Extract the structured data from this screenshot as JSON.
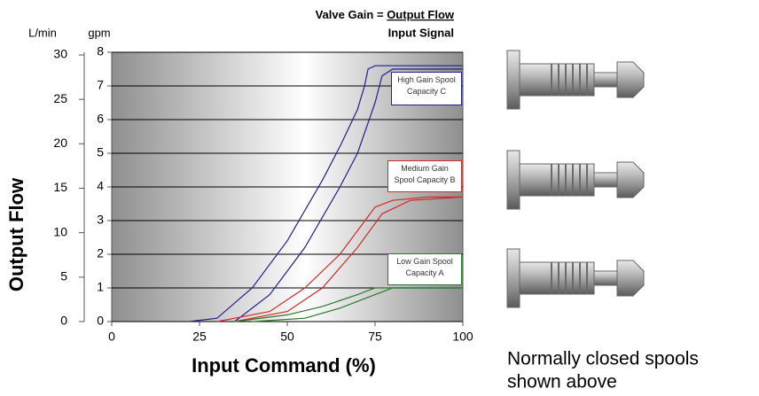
{
  "chart_data": {
    "type": "line",
    "title": "Valve Gain =",
    "title_numerator": "Output Flow",
    "title_denominator": "Input Signal",
    "y_label": "Output Flow",
    "y_unit": "gpm",
    "y2_unit": "L/min",
    "x_label": "Input Command (%)",
    "xlim": [
      0,
      100
    ],
    "xticks": [
      0,
      25,
      50,
      75,
      100
    ],
    "ylim": [
      0,
      8
    ],
    "yticks": [
      0,
      1,
      2,
      3,
      4,
      5,
      6,
      7,
      8
    ],
    "y2lim": [
      0,
      30.3
    ],
    "y2ticks": [
      0,
      5,
      10,
      15,
      20,
      25,
      30
    ],
    "grid": true,
    "series": [
      {
        "name": "High Gain Spool Capacity C",
        "color": "#1f1f8f",
        "curves": [
          {
            "x": [
              22,
              30,
              40,
              50,
              55,
              60,
              65,
              70,
              72,
              73,
              75,
              100
            ],
            "values": [
              0,
              0.1,
              1,
              2.4,
              3.3,
              4.2,
              5.2,
              6.3,
              7,
              7.5,
              7.6,
              7.6
            ]
          },
          {
            "x": [
              35,
              45,
              55,
              65,
              70,
              75,
              77,
              80,
              100
            ],
            "values": [
              0,
              0.8,
              2.2,
              4,
              5,
              6.5,
              7.3,
              7.5,
              7.5
            ]
          }
        ]
      },
      {
        "name": "Medium Gain Spool Capacity B",
        "color": "#d42a2a",
        "curves": [
          {
            "x": [
              30,
              45,
              55,
              65,
              70,
              75,
              80,
              90,
              100
            ],
            "values": [
              0,
              0.3,
              1,
              2,
              2.7,
              3.4,
              3.6,
              3.7,
              3.7
            ]
          },
          {
            "x": [
              35,
              50,
              60,
              70,
              77,
              85,
              100
            ],
            "values": [
              0,
              0.3,
              1,
              2.2,
              3.2,
              3.6,
              3.7
            ]
          }
        ]
      },
      {
        "name": "Low Gain Spool Capacity A",
        "color": "#2a7a2a",
        "curves": [
          {
            "x": [
              35,
              50,
              60,
              70,
              75,
              100
            ],
            "values": [
              0,
              0.2,
              0.45,
              0.8,
              1,
              1
            ]
          },
          {
            "x": [
              40,
              55,
              65,
              75,
              80,
              100
            ],
            "values": [
              0,
              0.1,
              0.4,
              0.8,
              1,
              1
            ]
          }
        ]
      }
    ],
    "caption": [
      "Normally closed spools",
      "shown above"
    ]
  }
}
